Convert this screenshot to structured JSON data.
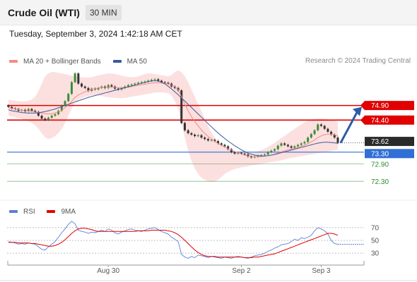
{
  "header": {
    "title": "Crude Oil (WTI)",
    "timeframe": "30 MIN"
  },
  "timestamp": "Tuesday, September 3, 2024 1:42:18 AM CET",
  "legend": {
    "ma20": {
      "label": "MA 20 + Bollinger Bands",
      "color": "#f28b82"
    },
    "ma50": {
      "label": "MA 50",
      "color": "#3c5a99"
    }
  },
  "copyright": "Research © 2024 Trading Central",
  "rsi_legend": {
    "rsi": {
      "label": "RSI",
      "color": "#5b7fd6"
    },
    "ma9": {
      "label": "9MA",
      "color": "#e00000"
    }
  },
  "chart_data": [
    {
      "type": "candlestick",
      "ylim": [
        71.7,
        76.1
      ],
      "x_ticks": [
        "Aug 30",
        "Sep 2",
        "Sep 3"
      ],
      "last_price": "73.62",
      "levels": [
        {
          "label": "74.90",
          "value": 74.9,
          "kind": "resistance",
          "color": "#e00000"
        },
        {
          "label": "74.40",
          "value": 74.4,
          "kind": "resistance",
          "color": "#e00000"
        },
        {
          "label": "73.30",
          "value": 73.3,
          "kind": "pivot",
          "color": "#2f6fd6"
        },
        {
          "label": "72.90",
          "value": 72.9,
          "kind": "support",
          "color": "#2e8b2e"
        },
        {
          "label": "72.30",
          "value": 72.3,
          "kind": "support",
          "color": "#2e8b2e"
        }
      ],
      "close": [
        74.85,
        74.8,
        74.78,
        74.72,
        74.75,
        74.7,
        74.78,
        74.72,
        74.68,
        74.55,
        74.45,
        74.4,
        74.48,
        74.55,
        74.6,
        74.72,
        74.9,
        75.05,
        75.3,
        75.7,
        76.0,
        75.65,
        75.55,
        75.5,
        75.4,
        75.48,
        75.45,
        75.5,
        75.55,
        75.5,
        75.6,
        75.55,
        75.48,
        75.45,
        75.5,
        75.55,
        75.6,
        75.62,
        75.65,
        75.68,
        75.7,
        75.72,
        75.75,
        75.78,
        75.8,
        75.75,
        75.7,
        75.68,
        75.65,
        75.55,
        75.5,
        75.42,
        74.3,
        74.05,
        73.95,
        73.9,
        73.85,
        73.88,
        73.8,
        73.75,
        73.7,
        73.72,
        73.68,
        73.6,
        73.55,
        73.5,
        73.4,
        73.3,
        73.25,
        73.28,
        73.25,
        73.22,
        73.15,
        73.12,
        73.15,
        73.18,
        73.2,
        73.22,
        73.3,
        73.35,
        73.4,
        73.52,
        73.6,
        73.55,
        73.5,
        73.45,
        73.5,
        73.55,
        73.6,
        73.65,
        73.8,
        73.92,
        74.05,
        74.25,
        74.2,
        74.1,
        74.0,
        73.9,
        73.8,
        73.62
      ],
      "ma20": [
        74.82,
        74.8,
        74.78,
        74.76,
        74.74,
        74.72,
        74.71,
        74.7,
        74.68,
        74.66,
        74.64,
        74.62,
        74.61,
        74.62,
        74.64,
        74.68,
        74.74,
        74.82,
        74.92,
        75.04,
        75.18,
        75.26,
        75.32,
        75.37,
        75.41,
        75.45,
        75.47,
        75.5,
        75.52,
        75.52,
        75.53,
        75.53,
        75.52,
        75.51,
        75.51,
        75.52,
        75.53,
        75.55,
        75.57,
        75.59,
        75.61,
        75.63,
        75.65,
        75.67,
        75.68,
        75.68,
        75.67,
        75.66,
        75.64,
        75.6,
        75.54,
        75.45,
        75.2,
        74.95,
        74.72,
        74.52,
        74.35,
        74.2,
        74.06,
        73.94,
        73.84,
        73.75,
        73.67,
        73.6,
        73.54,
        73.48,
        73.42,
        73.37,
        73.32,
        73.28,
        73.24,
        73.2,
        73.17,
        73.15,
        73.14,
        73.14,
        73.15,
        73.16,
        73.18,
        73.2,
        73.23,
        73.27,
        73.31,
        73.35,
        73.38,
        73.4,
        73.43,
        73.46,
        73.5,
        73.54,
        73.59,
        73.65,
        73.72,
        73.8,
        73.86,
        73.9,
        73.92,
        73.92,
        73.9,
        73.86
      ],
      "upper_band": [
        75.1,
        75.08,
        75.06,
        75.05,
        75.04,
        75.04,
        75.06,
        75.1,
        75.2,
        75.4,
        75.65,
        75.9,
        76.0,
        76.05,
        76.05,
        76.02,
        76.0,
        75.98,
        75.95,
        75.92,
        75.9,
        75.88,
        75.87,
        75.86,
        75.86,
        75.87,
        75.9,
        75.93,
        75.96,
        75.98,
        76.0,
        76.0,
        75.98,
        75.96,
        75.92,
        75.9,
        75.88,
        75.87,
        75.88,
        75.9,
        75.94,
        75.98,
        76.0,
        76.0,
        75.98,
        75.96,
        75.94,
        75.92,
        75.9,
        75.95,
        76.05,
        76.1,
        76.05,
        75.9,
        75.7,
        75.45,
        75.2,
        74.95,
        74.7,
        74.45,
        74.2,
        73.98,
        73.8,
        73.65,
        73.55,
        73.48,
        73.42,
        73.37,
        73.33,
        73.3,
        73.28,
        73.27,
        73.27,
        73.28,
        73.3,
        73.33,
        73.37,
        73.42,
        73.48,
        73.55,
        73.62,
        73.7,
        73.78,
        73.86,
        73.94,
        74.02,
        74.1,
        74.18,
        74.25,
        74.32,
        74.38,
        74.42,
        74.44,
        74.45,
        74.45,
        74.44,
        74.42,
        74.4,
        74.38,
        74.35
      ],
      "lower_band": [
        74.55,
        74.52,
        74.5,
        74.47,
        74.44,
        74.4,
        74.36,
        74.3,
        74.22,
        74.1,
        73.95,
        73.8,
        73.75,
        73.78,
        73.85,
        73.95,
        74.1,
        74.3,
        74.55,
        74.8,
        75.0,
        75.1,
        75.15,
        75.2,
        75.22,
        75.25,
        75.25,
        75.24,
        75.22,
        75.2,
        75.18,
        75.17,
        75.16,
        75.15,
        75.15,
        75.16,
        75.18,
        75.2,
        75.22,
        75.24,
        75.26,
        75.28,
        75.3,
        75.32,
        75.34,
        75.35,
        75.35,
        75.34,
        75.32,
        75.25,
        75.05,
        74.8,
        74.3,
        73.8,
        73.35,
        73.0,
        72.75,
        72.55,
        72.42,
        72.35,
        72.3,
        72.28,
        72.3,
        72.35,
        72.45,
        72.55,
        72.62,
        72.68,
        72.72,
        72.75,
        72.78,
        72.8,
        72.82,
        72.84,
        72.86,
        72.88,
        72.9,
        72.92,
        72.94,
        72.96,
        72.98,
        73.0,
        73.02,
        73.05,
        73.08,
        73.1,
        73.12,
        73.14,
        73.16,
        73.18,
        73.2,
        73.22,
        73.24,
        73.26,
        73.28,
        73.3,
        73.32,
        73.34,
        73.36,
        73.38
      ],
      "ma50": [
        74.75,
        74.72,
        74.7,
        74.68,
        74.66,
        74.65,
        74.64,
        74.64,
        74.64,
        74.65,
        74.67,
        74.69,
        74.72,
        74.75,
        74.78,
        74.82,
        74.86,
        74.9,
        74.94,
        74.98,
        75.02,
        75.06,
        75.1,
        75.14,
        75.18,
        75.21,
        75.24,
        75.27,
        75.3,
        75.33,
        75.36,
        75.39,
        75.42,
        75.45,
        75.48,
        75.51,
        75.54,
        75.57,
        75.6,
        75.63,
        75.66,
        75.69,
        75.72,
        75.74,
        75.75,
        75.74,
        75.7,
        75.64,
        75.56,
        75.47,
        75.37,
        75.27,
        75.16,
        75.05,
        74.94,
        74.83,
        74.72,
        74.61,
        74.5,
        74.39,
        74.28,
        74.17,
        74.06,
        73.96,
        73.86,
        73.77,
        73.68,
        73.6,
        73.52,
        73.45,
        73.38,
        73.32,
        73.27,
        73.23,
        73.2,
        73.18,
        73.17,
        73.17,
        73.18,
        73.2,
        73.22,
        73.25,
        73.28,
        73.31,
        73.34,
        73.37,
        73.4,
        73.43,
        73.46,
        73.49,
        73.52,
        73.55,
        73.58,
        73.61,
        73.63,
        73.64,
        73.64,
        73.63,
        73.62,
        73.6
      ]
    },
    {
      "type": "line",
      "ylim": [
        18,
        82
      ],
      "yticks": [
        70,
        50,
        30
      ],
      "series": [
        {
          "name": "RSI",
          "values": [
            48,
            47,
            46,
            44,
            45,
            44,
            46,
            45,
            44,
            40,
            36,
            35,
            40,
            44,
            48,
            55,
            62,
            68,
            75,
            80,
            76,
            66,
            64,
            63,
            61,
            63,
            62,
            64,
            66,
            64,
            68,
            66,
            62,
            60,
            63,
            65,
            67,
            68,
            66,
            65,
            64,
            66,
            68,
            69,
            70,
            67,
            64,
            62,
            60,
            55,
            52,
            48,
            28,
            24,
            22,
            25,
            23,
            27,
            26,
            25,
            23,
            25,
            24,
            23,
            22,
            24,
            23,
            22,
            24,
            25,
            24,
            23,
            22,
            24,
            26,
            27,
            28,
            30,
            33,
            35,
            38,
            40,
            43,
            44,
            45,
            48,
            52,
            50,
            54,
            53,
            55,
            58,
            65,
            70,
            68,
            65,
            60,
            50,
            45,
            44
          ]
        },
        {
          "name": "9MA",
          "values": [
            47,
            47,
            47,
            46,
            46,
            46,
            46,
            45,
            45,
            44,
            43,
            42,
            41,
            41,
            42,
            44,
            47,
            51,
            56,
            61,
            65,
            68,
            69,
            69,
            68,
            67,
            65,
            64,
            64,
            64,
            64,
            64,
            64,
            64,
            64,
            64,
            64,
            64,
            64,
            65,
            65,
            65,
            65,
            66,
            66,
            66,
            66,
            66,
            65,
            64,
            62,
            59,
            55,
            50,
            45,
            40,
            35,
            31,
            28,
            26,
            25,
            25,
            25,
            24,
            24,
            24,
            24,
            24,
            24,
            24,
            24,
            23,
            23,
            23,
            24,
            24,
            25,
            26,
            27,
            28,
            29,
            31,
            33,
            35,
            37,
            39,
            41,
            43,
            45,
            47,
            49,
            51,
            53,
            55,
            57,
            59,
            61,
            61,
            60,
            58
          ]
        }
      ]
    }
  ]
}
